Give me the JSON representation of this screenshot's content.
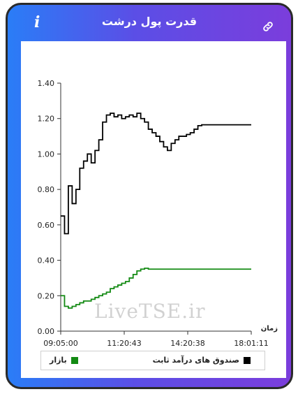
{
  "header": {
    "title": "قدرت پول درشت",
    "info_icon": "i",
    "link_icon": "link-icon"
  },
  "colors": {
    "gradient_start": "#2a7df7",
    "gradient_end": "#7b3ddc",
    "series_fund": "#000000",
    "series_market": "#138a13"
  },
  "watermark": "LiveTSE.ir",
  "chart_data": {
    "type": "line",
    "xlabel": "زمان",
    "x_tick_labels": [
      "09:05:00",
      "11:20:43",
      "14:20:38",
      "18:01:11"
    ],
    "ylim": [
      0,
      1.4
    ],
    "y_ticks": [
      "0.00",
      "0.20",
      "0.40",
      "0.60",
      "0.80",
      "1.00",
      "1.20",
      "1.40"
    ],
    "x": [
      0,
      0.02,
      0.04,
      0.06,
      0.08,
      0.1,
      0.12,
      0.14,
      0.16,
      0.18,
      0.2,
      0.22,
      0.24,
      0.26,
      0.28,
      0.3,
      0.32,
      0.34,
      0.36,
      0.38,
      0.4,
      0.42,
      0.44,
      0.46,
      0.48,
      0.5,
      0.52,
      0.54,
      0.56,
      0.58,
      0.6,
      0.62,
      0.64,
      0.66,
      0.68,
      0.7,
      0.72,
      0.74,
      0.76,
      0.78,
      0.8,
      0.84,
      0.88,
      0.92,
      0.96,
      1.0
    ],
    "series": [
      {
        "name": "صندوق های درآمد ثابت",
        "values": [
          0.65,
          0.55,
          0.82,
          0.72,
          0.8,
          0.92,
          0.96,
          1.0,
          0.95,
          1.02,
          1.08,
          1.18,
          1.22,
          1.23,
          1.21,
          1.22,
          1.2,
          1.21,
          1.22,
          1.21,
          1.23,
          1.2,
          1.18,
          1.14,
          1.12,
          1.1,
          1.07,
          1.04,
          1.02,
          1.06,
          1.08,
          1.1,
          1.1,
          1.11,
          1.12,
          1.14,
          1.16,
          1.165,
          1.165,
          1.165,
          1.165,
          1.165,
          1.165,
          1.165,
          1.165,
          1.165
        ]
      },
      {
        "name": "بازار",
        "values": [
          0.2,
          0.14,
          0.13,
          0.14,
          0.15,
          0.16,
          0.17,
          0.17,
          0.18,
          0.19,
          0.2,
          0.21,
          0.22,
          0.24,
          0.25,
          0.26,
          0.27,
          0.28,
          0.3,
          0.32,
          0.34,
          0.35,
          0.355,
          0.35,
          0.35,
          0.35,
          0.35,
          0.35,
          0.35,
          0.35,
          0.35,
          0.35,
          0.35,
          0.35,
          0.35,
          0.35,
          0.35,
          0.35,
          0.35,
          0.35,
          0.35,
          0.35,
          0.35,
          0.35,
          0.35,
          0.35
        ]
      }
    ],
    "legend": [
      "صندوق های درآمد ثابت",
      "بازار"
    ]
  }
}
